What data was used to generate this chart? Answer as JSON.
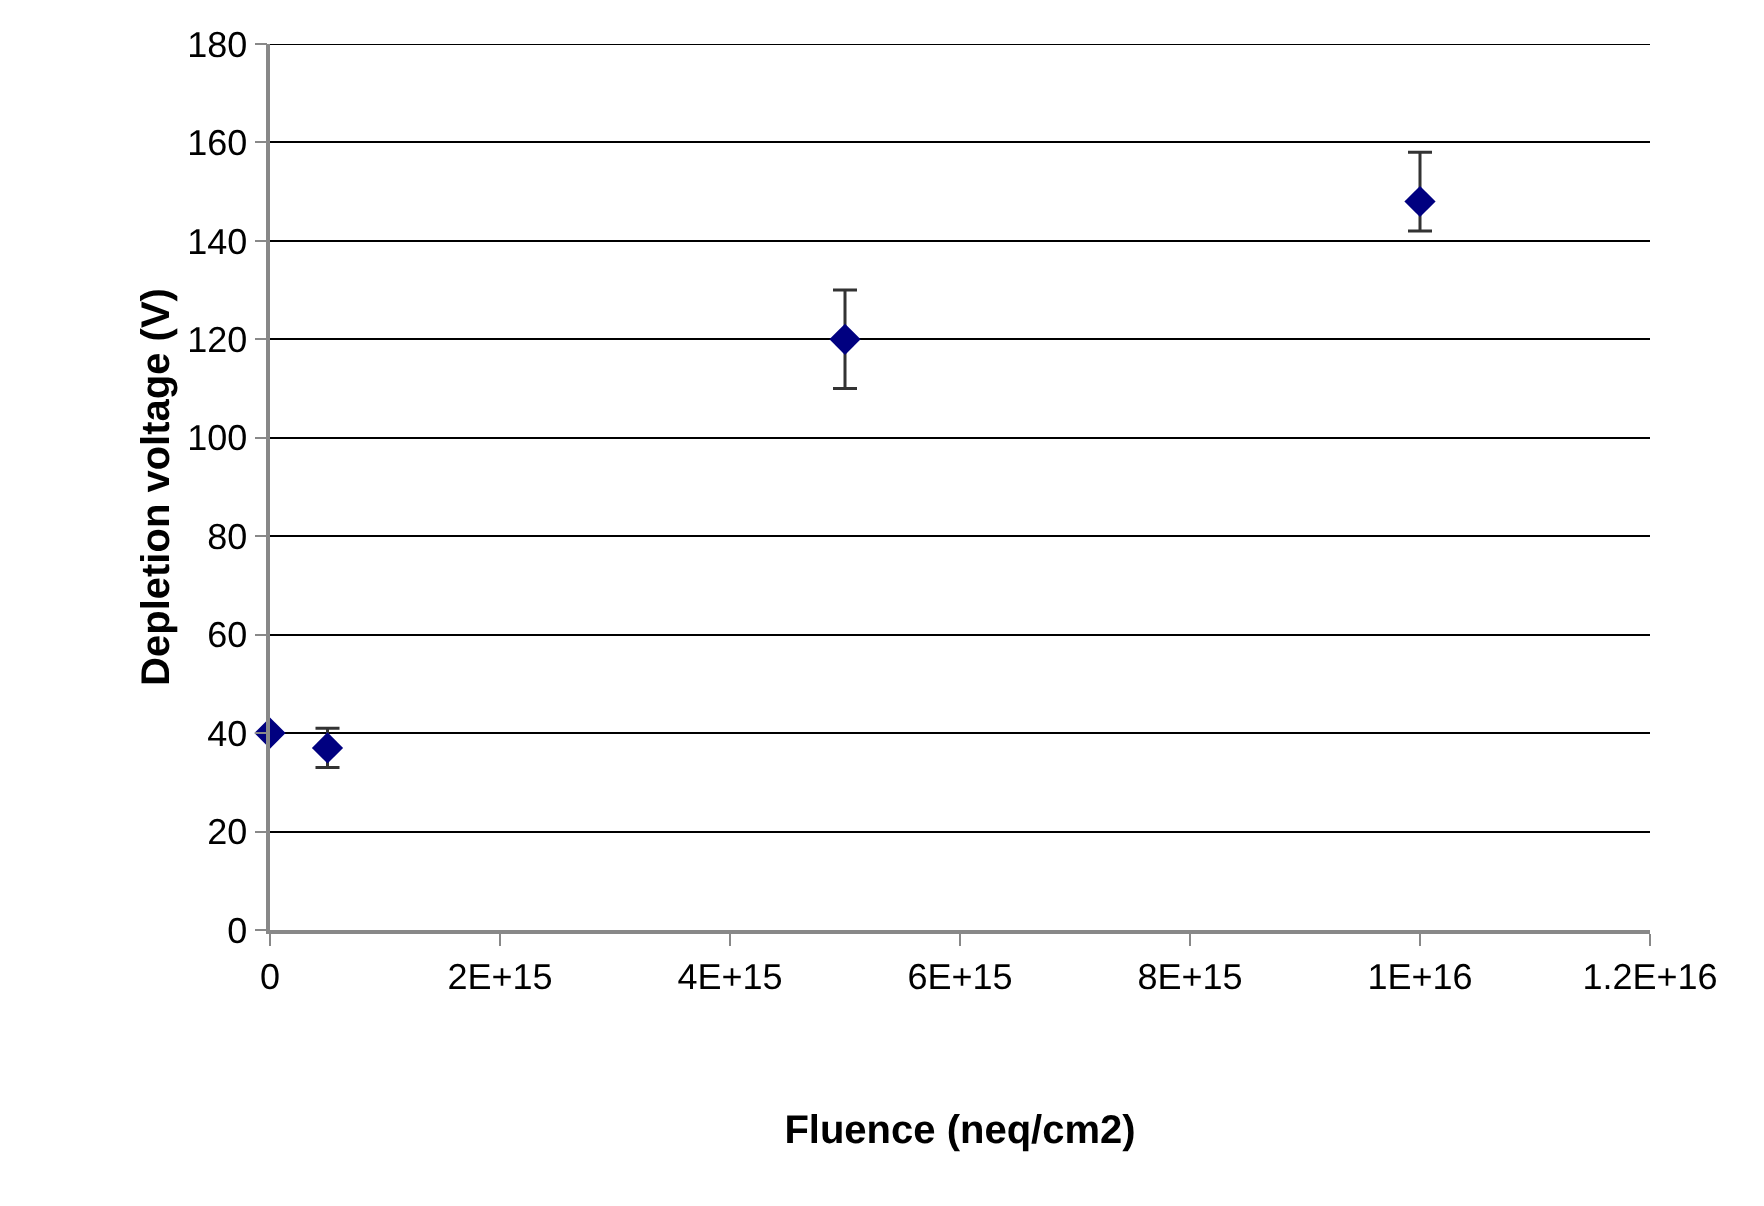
{
  "chart_data": {
    "type": "scatter",
    "xlabel": "Fluence (neq/cm2)",
    "ylabel": "Depletion voltage (V)",
    "x": [
      0,
      500000000000000.0,
      5000000000000000.0,
      1e+16
    ],
    "series": [
      {
        "color": "#000080",
        "values": [
          40,
          37,
          120,
          148
        ],
        "errors": [
          null,
          4,
          10,
          [
            142,
            158
          ]
        ]
      }
    ],
    "xlim": [
      0,
      1.2e+16
    ],
    "xticks": [
      0,
      {
        "value": 2000000000000000.0,
        "label": "2E+15"
      },
      {
        "value": 4000000000000000.0,
        "label": "4E+15"
      },
      {
        "value": 6000000000000000.0,
        "label": "6E+15"
      },
      {
        "value": 8000000000000000.0,
        "label": "8E+15"
      },
      {
        "value": 1e+16,
        "label": "1E+16"
      },
      {
        "value": 1.2e+16,
        "label": "1.2E+16"
      }
    ],
    "ylim": [
      0,
      180
    ],
    "yticks": [
      0,
      20,
      40,
      60,
      80,
      100,
      120,
      140,
      160,
      180
    ],
    "grid": "y",
    "marker": "diamond",
    "legend": false
  }
}
